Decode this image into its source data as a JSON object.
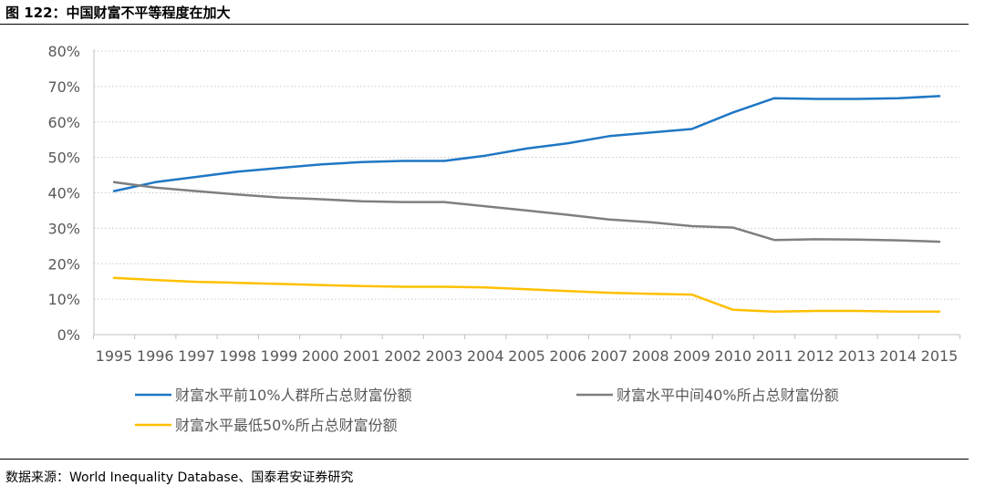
{
  "figure_title": "图 122：中国财富不平等程度在加大",
  "source_note": "数据来源：World Inequality Database、国泰君安证券研究",
  "chart_data": {
    "type": "line",
    "title": "图 122：中国财富不平等程度在加大",
    "xlabel": "",
    "ylabel": "",
    "x": [
      "1995",
      "1996",
      "1997",
      "1998",
      "1999",
      "2000",
      "2001",
      "2002",
      "2003",
      "2004",
      "2005",
      "2006",
      "2007",
      "2008",
      "2009",
      "2010",
      "2011",
      "2012",
      "2013",
      "2014",
      "2015"
    ],
    "ylim": [
      0,
      80
    ],
    "y_ticks": [
      "0%",
      "10%",
      "20%",
      "30%",
      "40%",
      "50%",
      "60%",
      "70%",
      "80%"
    ],
    "grid": "horizontal dotted",
    "legend_position": "bottom",
    "series": [
      {
        "name": "财富水平前10%人群所占总财富份额",
        "color": "#1f77c4",
        "values": [
          40.5,
          43.0,
          44.5,
          46.0,
          47.0,
          48.0,
          48.7,
          49.0,
          49.0,
          50.5,
          52.5,
          54.0,
          56.0,
          57.0,
          58.0,
          62.7,
          66.7,
          66.5,
          66.5,
          66.7,
          67.3
        ]
      },
      {
        "name": "财富水平中间40%所占总财富份额",
        "color": "#7f7f7f",
        "values": [
          43.0,
          41.5,
          40.5,
          39.5,
          38.7,
          38.2,
          37.6,
          37.4,
          37.4,
          36.2,
          35.0,
          33.8,
          32.5,
          31.7,
          30.6,
          30.2,
          26.7,
          26.9,
          26.8,
          26.6,
          26.2
        ]
      },
      {
        "name": "财富水平最低50%所占总财富份额",
        "color": "#ffc000",
        "values": [
          16.0,
          15.4,
          14.9,
          14.6,
          14.3,
          14.0,
          13.7,
          13.5,
          13.5,
          13.3,
          12.8,
          12.3,
          11.8,
          11.5,
          11.3,
          7.0,
          6.5,
          6.7,
          6.7,
          6.5,
          6.5
        ]
      }
    ]
  }
}
